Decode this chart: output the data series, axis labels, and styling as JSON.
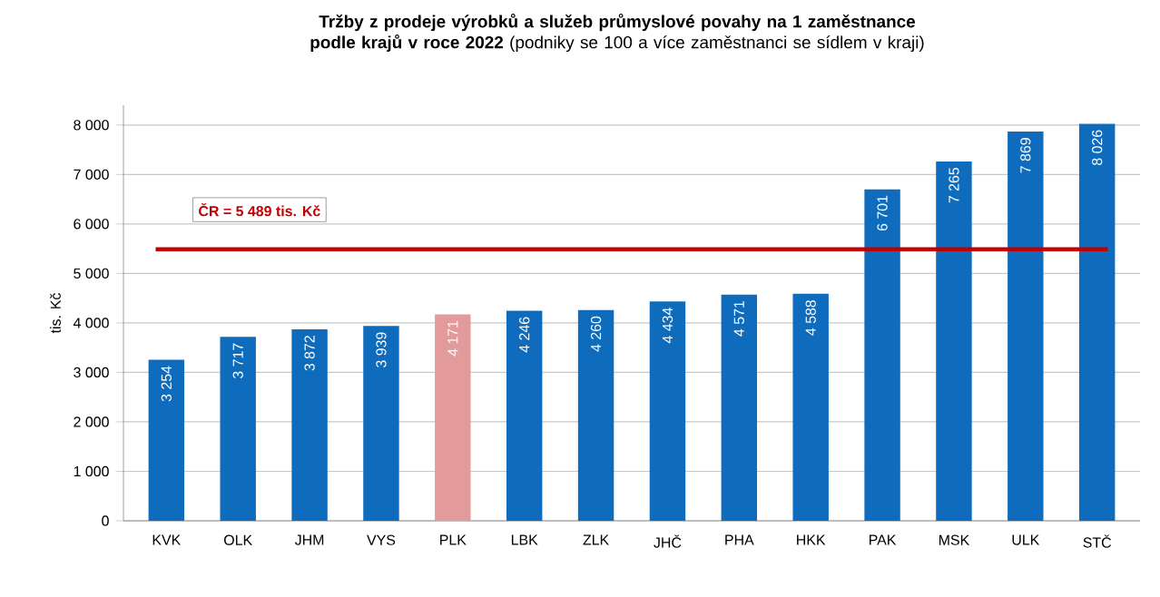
{
  "chart_data": {
    "type": "bar",
    "title": "**Tržby z prodeje výrobků a služeb průmyslové povahy na 1 zaměstnance podle krajů v roce 2022** (podniky se 100 a více zaměstnanci se sídlem v kraji)",
    "ylabel": "tis. Kč",
    "categories": [
      "KVK",
      "OLK",
      "JHM",
      "VYS",
      "PLK",
      "LBK",
      "ZLK",
      "JHČ",
      "PHA",
      "HKK",
      "PAK",
      "MSK",
      "ULK",
      "STČ"
    ],
    "values": [
      3254,
      3717,
      3872,
      3939,
      4171,
      4246,
      4260,
      4434,
      4571,
      4588,
      6701,
      7265,
      7869,
      8026
    ],
    "value_labels": [
      "3 254",
      "3 717",
      "3 872",
      "3 939",
      "4 171",
      "4 246",
      "4 260",
      "4 434",
      "4 571",
      "4 588",
      "6 701",
      "7 265",
      "7 869",
      "8 026"
    ],
    "colors": [
      "#0f6cbd",
      "#0f6cbd",
      "#0f6cbd",
      "#0f6cbd",
      "#e39a9a",
      "#0f6cbd",
      "#0f6cbd",
      "#0f6cbd",
      "#0f6cbd",
      "#0f6cbd",
      "#0f6cbd",
      "#0f6cbd",
      "#0f6cbd",
      "#0f6cbd"
    ],
    "ylim": [
      0,
      8400
    ],
    "yticks": [
      {
        "value": 0,
        "label": "0"
      },
      {
        "value": 1000,
        "label": "1 000"
      },
      {
        "value": 2000,
        "label": "2 000"
      },
      {
        "value": 3000,
        "label": "3 000"
      },
      {
        "value": 4000,
        "label": "4 000"
      },
      {
        "value": 5000,
        "label": "5 000"
      },
      {
        "value": 6000,
        "label": "6 000"
      },
      {
        "value": 7000,
        "label": "7 000"
      },
      {
        "value": 8000,
        "label": "8 000"
      }
    ],
    "grid": "y",
    "ref_lines": [
      {
        "axis": "y",
        "value": 5489,
        "label": "ČR = 5 489 tis. Kč",
        "color": "#c00000"
      }
    ]
  }
}
